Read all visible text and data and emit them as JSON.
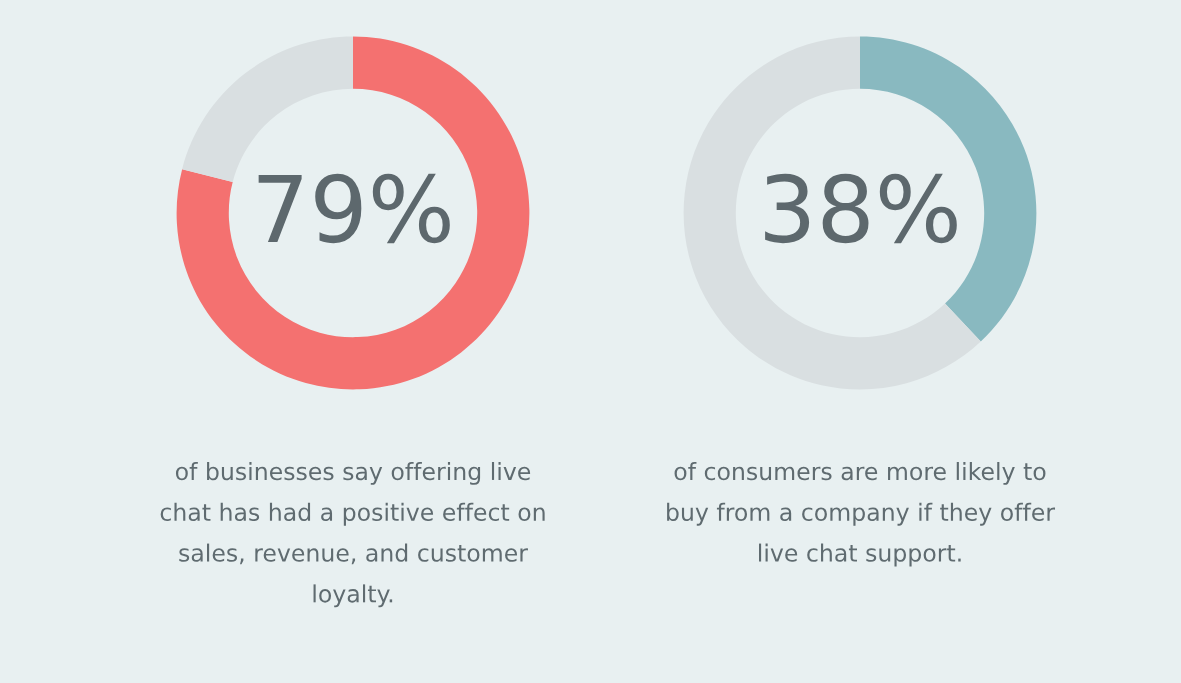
{
  "chart_data": [
    {
      "type": "donut",
      "categories": [
        null,
        null
      ],
      "values": [
        79,
        21
      ],
      "colors": [
        "#f47170",
        "#d9dfe1"
      ],
      "value_labels": [
        "79%",
        null
      ],
      "annotations": [
        "of businesses say offering live\nchat has had a positive effect on\nsales, revenue, and customer\nloyalty."
      ]
    },
    {
      "type": "donut",
      "categories": [
        null,
        null
      ],
      "values": [
        38,
        62
      ],
      "colors": [
        "#89b9c0",
        "#d9dfe1"
      ],
      "value_labels": [
        "38%",
        null
      ],
      "annotations": [
        "of consumers are more likely to\nbuy from a company if they offer\nlive chat support."
      ]
    }
  ]
}
